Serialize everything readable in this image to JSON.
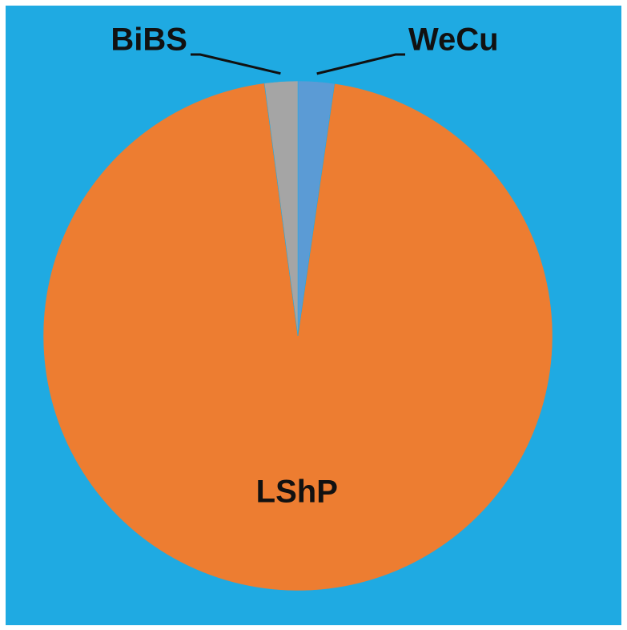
{
  "chart_data": {
    "type": "pie",
    "categories": [
      "WeCu",
      "LShP",
      "BiBS"
    ],
    "values": [
      2.3,
      95.6,
      2.1
    ],
    "colors": [
      "#5b9bd5",
      "#ed7d31",
      "#a5a5a5"
    ]
  }
}
